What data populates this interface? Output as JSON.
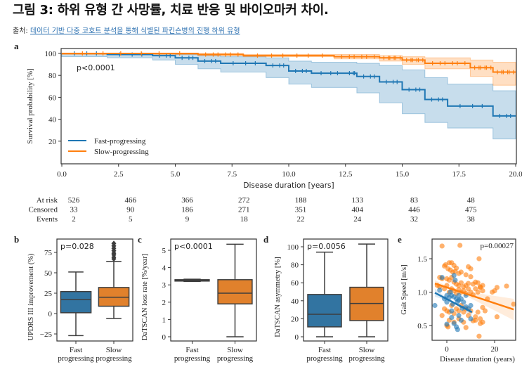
{
  "header": {
    "title": "그림 3: 하위 유형 간 사망률, 치료 반응 및 바이오마커 차이.",
    "source_prefix": "출처: ",
    "source_link": "데이터 기반 다중 코호트 분석을 통해 식별된 파킨슨병의 진행 하위 유형"
  },
  "colors": {
    "fast": "#1f77b4",
    "slow": "#ff7f0e",
    "box_fast": "#3274a1",
    "box_slow": "#e1812c",
    "edge": "#3d3d3d"
  },
  "chart_data": [
    {
      "panel": "a",
      "type": "line",
      "title": "",
      "xlabel": "Disease duration [years]",
      "ylabel": "Survival probability [%]",
      "xlim": [
        0,
        20
      ],
      "ylim": [
        0,
        102
      ],
      "xticks": [
        "0.0",
        "2.5",
        "5.0",
        "7.5",
        "10.0",
        "12.5",
        "15.0",
        "17.5",
        "20.0"
      ],
      "yticks": [
        "20",
        "40",
        "60",
        "80",
        "100"
      ],
      "annotation": "p<0.0001",
      "legend": {
        "placement": "bottom-left",
        "entries": [
          "Fast-progressing",
          "Slow-progressing"
        ]
      },
      "series": [
        {
          "name": "Fast-progressing",
          "steps": [
            [
              0,
              100
            ],
            [
              2,
              99
            ],
            [
              4,
              98
            ],
            [
              5,
              96
            ],
            [
              6,
              93
            ],
            [
              7,
              91
            ],
            [
              9,
              89
            ],
            [
              10,
              84
            ],
            [
              11,
              82
            ],
            [
              12.5,
              82
            ],
            [
              13,
              79
            ],
            [
              14,
              74
            ],
            [
              15,
              67
            ],
            [
              16,
              58
            ],
            [
              17,
              52
            ],
            [
              19,
              43
            ],
            [
              20,
              43
            ]
          ],
          "ci_low": [
            [
              0,
              97
            ],
            [
              2,
              96
            ],
            [
              4,
              94
            ],
            [
              5,
              90
            ],
            [
              6,
              86
            ],
            [
              7,
              83
            ],
            [
              9,
              78
            ],
            [
              10,
              72
            ],
            [
              11,
              69
            ],
            [
              13,
              64
            ],
            [
              14,
              55
            ],
            [
              15,
              45
            ],
            [
              16,
              37
            ],
            [
              17,
              32
            ],
            [
              19,
              22
            ],
            [
              20,
              22
            ]
          ],
          "ci_high": [
            [
              0,
              100
            ],
            [
              2,
              100
            ],
            [
              4,
              100
            ],
            [
              5,
              99
            ],
            [
              6,
              98
            ],
            [
              7,
              97
            ],
            [
              9,
              96
            ],
            [
              10,
              93
            ],
            [
              11,
              92
            ],
            [
              13,
              91
            ],
            [
              14,
              89
            ],
            [
              15,
              85
            ],
            [
              16,
              78
            ],
            [
              17,
              72
            ],
            [
              19,
              66
            ],
            [
              20,
              66
            ]
          ]
        },
        {
          "name": "Slow-progressing",
          "steps": [
            [
              0,
              100
            ],
            [
              6,
              99
            ],
            [
              8,
              98
            ],
            [
              12,
              97
            ],
            [
              14,
              96
            ],
            [
              15,
              94
            ],
            [
              16,
              91
            ],
            [
              18,
              87
            ],
            [
              19,
              83
            ],
            [
              20,
              83
            ]
          ],
          "ci_low": [
            [
              0,
              99
            ],
            [
              6,
              98
            ],
            [
              8,
              97
            ],
            [
              12,
              95
            ],
            [
              14,
              93
            ],
            [
              15,
              90
            ],
            [
              16,
              86
            ],
            [
              18,
              79
            ],
            [
              19,
              71
            ],
            [
              20,
              71
            ]
          ],
          "ci_high": [
            [
              0,
              100
            ],
            [
              6,
              100
            ],
            [
              8,
              99
            ],
            [
              12,
              99
            ],
            [
              14,
              98
            ],
            [
              15,
              97
            ],
            [
              16,
              96
            ],
            [
              18,
              94
            ],
            [
              19,
              92
            ],
            [
              20,
              92
            ]
          ]
        }
      ],
      "risk_table": {
        "rows": [
          "At risk",
          "Censored",
          "Events"
        ],
        "times": [
          0,
          2.5,
          5,
          7.5,
          10,
          12.5,
          15,
          17.5,
          20
        ],
        "at_risk": [
          526,
          466,
          366,
          272,
          188,
          133,
          83,
          48,
          29
        ],
        "censored": [
          33,
          90,
          186,
          271,
          351,
          404,
          446,
          475,
          491
        ],
        "events": [
          2,
          5,
          9,
          18,
          22,
          24,
          32,
          38,
          41
        ]
      }
    },
    {
      "panel": "b",
      "type": "box",
      "ylabel": "UPDRS III improvement (%)",
      "annotation": "p=0.028",
      "ylim": [
        -32,
        92
      ],
      "yticks": [
        -25,
        0,
        25,
        50,
        75
      ],
      "categories": [
        "Fast\nprogressing",
        "Slow\nprogressing"
      ],
      "boxes": [
        {
          "whislo": -27,
          "q1": 1,
          "med": 17,
          "q3": 27,
          "whishi": 51,
          "fliers": []
        },
        {
          "whislo": -6,
          "q1": 9,
          "med": 20,
          "q3": 32,
          "whishi": 64,
          "fliers": [
            67,
            69,
            72,
            74,
            77,
            80,
            83,
            86
          ]
        }
      ]
    },
    {
      "panel": "c",
      "type": "box",
      "ylabel": "DaTSCAN loss rate [%/year]",
      "annotation": "p<0.0001",
      "ylim": [
        -0.25,
        5.6
      ],
      "yticks": [
        0,
        1,
        2,
        3,
        4,
        5
      ],
      "categories": [
        "Fast\nprogressing",
        "Slow\nprogressing"
      ],
      "boxes": [
        {
          "whislo": 3.2,
          "q1": 3.22,
          "med": 3.26,
          "q3": 3.3,
          "whishi": 3.33,
          "fliers": []
        },
        {
          "whislo": 0.0,
          "q1": 1.9,
          "med": 2.52,
          "q3": 3.3,
          "whishi": 5.35,
          "fliers": []
        }
      ]
    },
    {
      "panel": "d",
      "type": "box",
      "ylabel": "DaTSCAN asymmetry [%]",
      "annotation": "p=0.0056",
      "ylim": [
        -5,
        105
      ],
      "yticks": [
        0,
        20,
        40,
        60,
        80,
        100
      ],
      "categories": [
        "Fast\nprogressing",
        "Slow\nprogressing"
      ],
      "boxes": [
        {
          "whislo": 0,
          "q1": 11,
          "med": 25,
          "q3": 47,
          "whishi": 94,
          "fliers": []
        },
        {
          "whislo": 0,
          "q1": 18,
          "med": 37,
          "q3": 55,
          "whishi": 103,
          "fliers": []
        }
      ]
    },
    {
      "panel": "e",
      "type": "scatter",
      "xlabel": "Disease duration (years)",
      "ylabel": "Gait Speed [m/s]",
      "annotation": "p=0.00027",
      "xlim": [
        -7,
        29
      ],
      "ylim": [
        0.28,
        1.78
      ],
      "xticks": [
        0,
        20
      ],
      "yticks": [
        "0.5",
        "1.0",
        "1.5"
      ],
      "series": [
        {
          "name": "Slow-progressing",
          "points": [
            [
              -2,
              1.69
            ],
            [
              5.5,
              1.7
            ],
            [
              13.5,
              1.5
            ],
            [
              -1,
              1.39
            ],
            [
              -0.5,
              1.41
            ],
            [
              1,
              1.44
            ],
            [
              2,
              1.44
            ],
            [
              3,
              1.4
            ],
            [
              4,
              1.36
            ],
            [
              0.5,
              1.35
            ],
            [
              1.5,
              1.33
            ],
            [
              2.5,
              1.3
            ],
            [
              3.5,
              1.31
            ],
            [
              5,
              1.28
            ],
            [
              6,
              1.3
            ],
            [
              9,
              1.38
            ],
            [
              10,
              1.35
            ],
            [
              8,
              1.26
            ],
            [
              -3,
              1.22
            ],
            [
              -2,
              1.2
            ],
            [
              0,
              1.2
            ],
            [
              1,
              1.18
            ],
            [
              2,
              1.22
            ],
            [
              3,
              1.15
            ],
            [
              4,
              1.12
            ],
            [
              5,
              1.1
            ],
            [
              6,
              1.14
            ],
            [
              7,
              1.08
            ],
            [
              8,
              1.1
            ],
            [
              9,
              1.13
            ],
            [
              10,
              1.23
            ],
            [
              11,
              1.12
            ],
            [
              12,
              1.15
            ],
            [
              13,
              1.14
            ],
            [
              14,
              1.08
            ],
            [
              15,
              1.1
            ],
            [
              -4,
              1.1
            ],
            [
              -3,
              1.08
            ],
            [
              -1,
              1.05
            ],
            [
              0,
              1.1
            ],
            [
              1,
              1.0
            ],
            [
              2,
              1.05
            ],
            [
              3,
              1.02
            ],
            [
              4,
              0.98
            ],
            [
              5,
              1.04
            ],
            [
              6,
              1.0
            ],
            [
              7,
              1.02
            ],
            [
              8,
              0.98
            ],
            [
              9,
              1.05
            ],
            [
              10,
              1.0
            ],
            [
              11,
              0.96
            ],
            [
              12,
              1.05
            ],
            [
              13,
              1.0
            ],
            [
              14,
              1.07
            ],
            [
              15,
              1.02
            ],
            [
              17,
              0.9
            ],
            [
              19,
              1.0
            ],
            [
              20,
              1.02
            ],
            [
              21,
              1.07
            ],
            [
              25,
              1.09
            ],
            [
              28,
              0.82
            ],
            [
              -1,
              0.75
            ],
            [
              0,
              0.72
            ],
            [
              1,
              0.7
            ],
            [
              2,
              0.8
            ],
            [
              3,
              0.68
            ],
            [
              4,
              0.75
            ],
            [
              5,
              0.72
            ],
            [
              6,
              0.8
            ],
            [
              7,
              0.7
            ],
            [
              8,
              0.75
            ],
            [
              9,
              0.65
            ],
            [
              10,
              0.72
            ],
            [
              12,
              0.63
            ],
            [
              13,
              0.7
            ],
            [
              14,
              0.6
            ],
            [
              15,
              0.77
            ],
            [
              16,
              0.72
            ],
            [
              -2,
              0.65
            ],
            [
              0,
              0.5
            ],
            [
              1,
              0.58
            ],
            [
              3,
              0.55
            ],
            [
              5,
              0.6
            ],
            [
              7,
              0.55
            ],
            [
              8,
              0.47
            ],
            [
              11,
              0.57
            ],
            [
              12,
              0.58
            ],
            [
              14,
              0.53
            ],
            [
              15,
              0.55
            ],
            [
              13.5,
              0.34
            ],
            [
              21,
              0.63
            ],
            [
              0.5,
              0.48
            ]
          ],
          "fit": {
            "x": [
              -5,
              28
            ],
            "y": [
              1.13,
              0.74
            ]
          }
        },
        {
          "name": "Fast-progressing",
          "points": [
            [
              -5,
              0.8
            ],
            [
              -3,
              1.03
            ],
            [
              -2,
              1.22
            ],
            [
              -1,
              0.9
            ],
            [
              0,
              0.95
            ],
            [
              0,
              0.85
            ],
            [
              1,
              0.92
            ],
            [
              1.5,
              1.0
            ],
            [
              2,
              0.95
            ],
            [
              2.5,
              0.82
            ],
            [
              3,
              0.93
            ],
            [
              3,
              1.25
            ],
            [
              3.5,
              1.18
            ],
            [
              4,
              0.9
            ],
            [
              4.5,
              0.86
            ],
            [
              5,
              0.95
            ],
            [
              5,
              0.88
            ],
            [
              6,
              0.9
            ],
            [
              6.5,
              0.76
            ],
            [
              7,
              0.85
            ],
            [
              8,
              0.95
            ],
            [
              8,
              0.78
            ],
            [
              9,
              0.75
            ],
            [
              10,
              0.8
            ],
            [
              10,
              0.6
            ],
            [
              0,
              0.52
            ],
            [
              2,
              0.62
            ],
            [
              3,
              0.53
            ],
            [
              4,
              0.48
            ],
            [
              4.5,
              0.44
            ],
            [
              5,
              0.65
            ],
            [
              6,
              0.58
            ],
            [
              2,
              0.72
            ]
          ],
          "fit": {
            "x": [
              -5,
              10.5
            ],
            "y": [
              0.99,
              0.7
            ]
          }
        }
      ]
    }
  ]
}
